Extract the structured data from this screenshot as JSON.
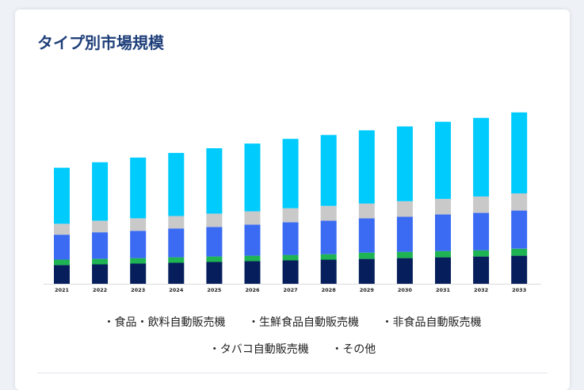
{
  "title": "タイプ別市場規模",
  "colors": {
    "food": "#061f5c",
    "fresh": "#1eb454",
    "nonfood": "#3a6bf2",
    "tobacco": "#c9c9c9",
    "other": "#00cbfd"
  },
  "chart_data": {
    "type": "bar",
    "stacked": true,
    "categories": [
      "2021",
      "2022",
      "2023",
      "2024",
      "2025",
      "2026",
      "2027",
      "2028",
      "2029",
      "2030",
      "2031",
      "2032",
      "2033"
    ],
    "series": [
      {
        "name": "食品・飲料自動販売機",
        "values": [
          24,
          25,
          26,
          27,
          28,
          29,
          30,
          31,
          32,
          33,
          34,
          35,
          36
        ]
      },
      {
        "name": "生鮮食品自動販売機",
        "values": [
          7,
          7,
          7,
          7,
          7,
          7,
          7,
          7,
          8,
          8,
          8,
          8,
          9
        ]
      },
      {
        "name": "非食品自動販売機",
        "values": [
          32,
          34,
          35,
          37,
          38,
          40,
          42,
          43,
          44,
          45,
          47,
          48,
          49
        ]
      },
      {
        "name": "タバコ自動販売機",
        "values": [
          14,
          15,
          16,
          16,
          17,
          17,
          18,
          19,
          19,
          20,
          20,
          21,
          22
        ]
      },
      {
        "name": "その他",
        "values": [
          72,
          75,
          78,
          81,
          84,
          87,
          89,
          91,
          94,
          96,
          99,
          101,
          104
        ]
      }
    ],
    "ylim": [
      0,
      230
    ],
    "grid": false,
    "legend": "bottom"
  },
  "legend": {
    "items": [
      "食品・飲料自動販売機",
      "生鮮食品自動販売機",
      "非食品自動販売機",
      "タバコ自動販売機",
      "その他"
    ]
  }
}
